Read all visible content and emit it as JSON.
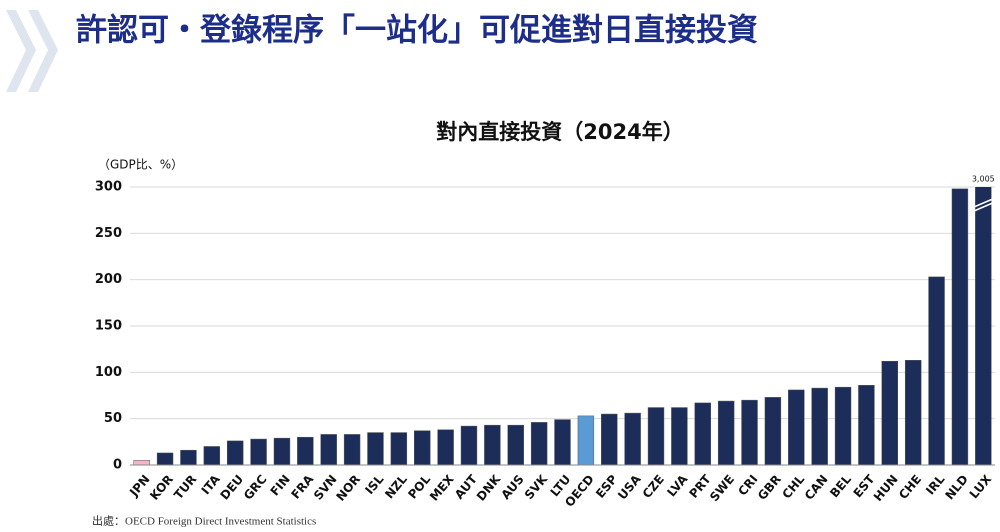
{
  "header": {
    "title": "許認可・登錄程序「一站化」可促進對日直接投資"
  },
  "chart_data": {
    "type": "bar",
    "title": "對內直接投資（2024年）",
    "y_axis_label": "（GDP比、%）",
    "categories": [
      "JPN",
      "KOR",
      "TUR",
      "ITA",
      "DEU",
      "GRC",
      "FIN",
      "FRA",
      "SVN",
      "NOR",
      "ISL",
      "NZL",
      "POL",
      "MEX",
      "AUT",
      "DNK",
      "AUS",
      "SVK",
      "LTU",
      "OECD",
      "ESP",
      "USA",
      "CZE",
      "LVA",
      "PRT",
      "SWE",
      "CRI",
      "GBR",
      "CHL",
      "CAN",
      "BEL",
      "EST",
      "HUN",
      "CHE",
      "IRL",
      "NLD",
      "LUX"
    ],
    "values": [
      5,
      13,
      16,
      20,
      26,
      28,
      29,
      30,
      33,
      33,
      35,
      35,
      37,
      38,
      42,
      43,
      43,
      46,
      49,
      53,
      55,
      56,
      62,
      62,
      67,
      69,
      70,
      73,
      81,
      83,
      84,
      86,
      112,
      113,
      203,
      298,
      3005
    ],
    "value_labels": [
      null,
      null,
      null,
      null,
      null,
      null,
      null,
      null,
      null,
      null,
      null,
      null,
      null,
      null,
      null,
      null,
      null,
      null,
      null,
      null,
      null,
      null,
      null,
      null,
      null,
      null,
      null,
      null,
      null,
      null,
      null,
      null,
      null,
      null,
      null,
      null,
      "3,005"
    ],
    "colors": [
      "#f4b6c6",
      "#1c2d5a",
      "#1c2d5a",
      "#1c2d5a",
      "#1c2d5a",
      "#1c2d5a",
      "#1c2d5a",
      "#1c2d5a",
      "#1c2d5a",
      "#1c2d5a",
      "#1c2d5a",
      "#1c2d5a",
      "#1c2d5a",
      "#1c2d5a",
      "#1c2d5a",
      "#1c2d5a",
      "#1c2d5a",
      "#1c2d5a",
      "#1c2d5a",
      "#5b9bd5",
      "#1c2d5a",
      "#1c2d5a",
      "#1c2d5a",
      "#1c2d5a",
      "#1c2d5a",
      "#1c2d5a",
      "#1c2d5a",
      "#1c2d5a",
      "#1c2d5a",
      "#1c2d5a",
      "#1c2d5a",
      "#1c2d5a",
      "#1c2d5a",
      "#1c2d5a",
      "#1c2d5a",
      "#1c2d5a",
      "#1c2d5a"
    ],
    "ylim": [
      0,
      300
    ],
    "yticks": [
      0,
      50,
      100,
      150,
      200,
      250,
      300
    ],
    "grid": true,
    "source": "出處：OECD Foreign Direct Investment Statistics"
  }
}
